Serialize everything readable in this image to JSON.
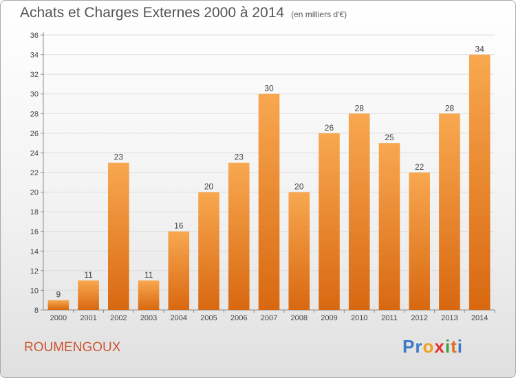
{
  "title": "Achats et Charges Externes 2000 à 2014",
  "subtitle": "(en milliers d'€)",
  "commune": "ROUMENGOUX",
  "logo": {
    "letters": [
      "P",
      "r",
      "o",
      "x",
      "i",
      "t",
      "i"
    ],
    "colors": [
      "#3a78c8",
      "#3a78c8",
      "#f0a020",
      "#e03030",
      "#40a040",
      "#e07020",
      "#3a78c8"
    ]
  },
  "colors": {
    "bar_top": "#f8a850",
    "bar_bottom": "#d86810",
    "title": "#555555",
    "commune": "#cc5530"
  },
  "chart_data": {
    "type": "bar",
    "title": "Achats et Charges Externes 2000 à 2014",
    "xlabel": "",
    "ylabel": "",
    "categories": [
      "2000",
      "2001",
      "2002",
      "2003",
      "2004",
      "2005",
      "2006",
      "2007",
      "2008",
      "2009",
      "2010",
      "2011",
      "2012",
      "2013",
      "2014"
    ],
    "values": [
      9,
      11,
      23,
      11,
      16,
      20,
      23,
      30,
      20,
      26,
      28,
      25,
      22,
      28,
      34
    ],
    "ylim": [
      8,
      36
    ],
    "yticks": [
      8,
      10,
      12,
      14,
      16,
      18,
      20,
      22,
      24,
      26,
      28,
      30,
      32,
      34,
      36
    ],
    "grid": true
  }
}
